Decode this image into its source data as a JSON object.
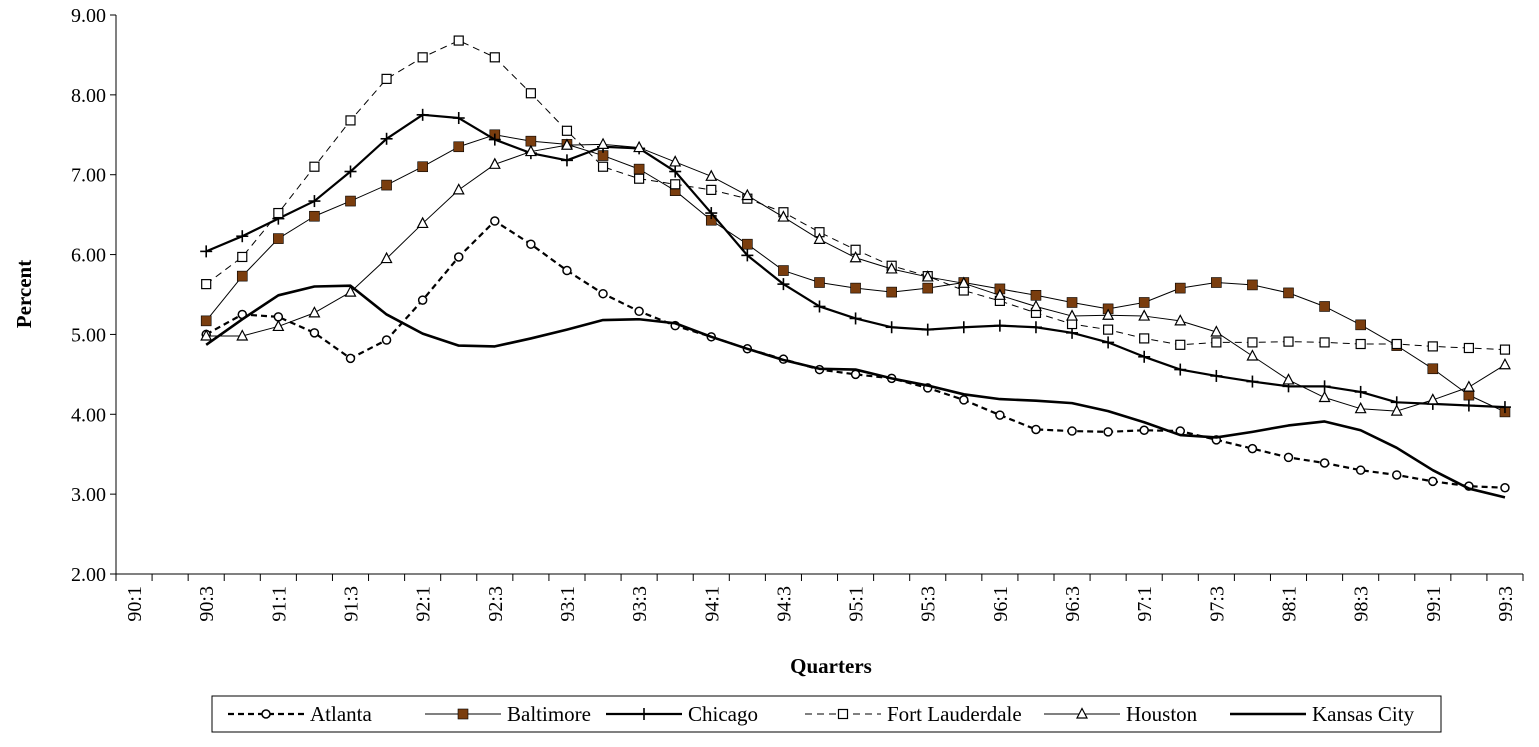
{
  "chart_data": {
    "type": "line",
    "title": "",
    "xlabel": "Quarters",
    "ylabel": "Percent",
    "ylim": [
      2.0,
      9.0
    ],
    "y_ticks": [
      "2.00",
      "3.00",
      "4.00",
      "5.00",
      "6.00",
      "7.00",
      "8.00",
      "9.00"
    ],
    "grid": false,
    "legend_position": "bottom",
    "categories": [
      "90:1",
      "90:2",
      "90:3",
      "90:4",
      "91:1",
      "91:2",
      "91:3",
      "91:4",
      "92:1",
      "92:2",
      "92:3",
      "92:4",
      "93:1",
      "93:2",
      "93:3",
      "93:4",
      "94:1",
      "94:2",
      "94:3",
      "94:4",
      "95:1",
      "95:2",
      "95:3",
      "95:4",
      "96:1",
      "96:2",
      "96:3",
      "96:4",
      "97:1",
      "97:2",
      "97:3",
      "97:4",
      "98:1",
      "98:2",
      "98:3",
      "98:4",
      "99:1",
      "99:2",
      "99:3"
    ],
    "x_tick_labels": [
      "90:1",
      "90:3",
      "91:1",
      "91:3",
      "92:1",
      "92:3",
      "93:1",
      "93:3",
      "94:1",
      "94:3",
      "95:1",
      "95:3",
      "96:1",
      "96:3",
      "97:1",
      "97:3",
      "98:1",
      "98:3",
      "99:1",
      "99:3"
    ],
    "series": [
      {
        "name": "Atlanta",
        "color": "#000000",
        "dash": "6,4",
        "width": 2.2,
        "marker": "circle",
        "values": [
          null,
          null,
          5.0,
          5.25,
          5.22,
          5.02,
          4.7,
          4.93,
          5.43,
          5.97,
          6.42,
          6.13,
          5.8,
          5.51,
          5.29,
          5.11,
          4.97,
          4.82,
          4.69,
          4.56,
          4.5,
          4.45,
          4.33,
          4.18,
          3.99,
          3.81,
          3.79,
          3.78,
          3.8,
          3.79,
          3.68,
          3.57,
          3.46,
          3.39,
          3.3,
          3.24,
          3.16,
          3.1,
          3.08
        ]
      },
      {
        "name": "Baltimore",
        "color": "#000000",
        "dash": "",
        "width": 1,
        "marker": "square-filled",
        "marker_color": "#7a3d0e",
        "values": [
          null,
          null,
          5.17,
          5.73,
          6.2,
          6.48,
          6.67,
          6.87,
          7.1,
          7.35,
          7.5,
          7.42,
          7.38,
          7.24,
          7.07,
          6.8,
          6.43,
          6.13,
          5.8,
          5.65,
          5.58,
          5.53,
          5.58,
          5.65,
          5.57,
          5.49,
          5.4,
          5.32,
          5.4,
          5.58,
          5.65,
          5.62,
          5.52,
          5.35,
          5.12,
          4.86,
          4.57,
          4.24,
          4.03
        ]
      },
      {
        "name": "Chicago",
        "color": "#000000",
        "dash": "",
        "width": 2.2,
        "marker": "plus",
        "values": [
          null,
          null,
          6.04,
          6.23,
          6.45,
          6.67,
          7.04,
          7.45,
          7.75,
          7.71,
          7.44,
          7.27,
          7.18,
          7.35,
          7.33,
          7.04,
          6.52,
          5.99,
          5.63,
          5.35,
          5.2,
          5.09,
          5.06,
          5.09,
          5.11,
          5.09,
          5.02,
          4.9,
          4.72,
          4.56,
          4.48,
          4.41,
          4.35,
          4.35,
          4.28,
          4.15,
          4.13,
          4.11,
          4.09
        ]
      },
      {
        "name": "Fort Lauderdale",
        "color": "#000000",
        "dash": "7,5",
        "width": 1,
        "marker": "square-open",
        "values": [
          null,
          null,
          5.63,
          5.97,
          6.52,
          7.1,
          7.68,
          8.2,
          8.47,
          8.68,
          8.47,
          8.02,
          7.55,
          7.1,
          6.95,
          6.88,
          6.81,
          6.7,
          6.53,
          6.28,
          6.06,
          5.86,
          5.73,
          5.55,
          5.42,
          5.27,
          5.13,
          5.06,
          4.95,
          4.87,
          4.9,
          4.9,
          4.91,
          4.9,
          4.88,
          4.88,
          4.85,
          4.83,
          4.81
        ]
      },
      {
        "name": "Houston",
        "color": "#000000",
        "dash": "",
        "width": 1,
        "marker": "triangle",
        "values": [
          null,
          null,
          4.98,
          4.98,
          5.1,
          5.27,
          5.53,
          5.95,
          6.39,
          6.81,
          7.13,
          7.29,
          7.37,
          7.38,
          7.34,
          7.16,
          6.98,
          6.74,
          6.47,
          6.19,
          5.96,
          5.82,
          5.72,
          5.64,
          5.49,
          5.35,
          5.23,
          5.24,
          5.23,
          5.17,
          5.03,
          4.73,
          4.43,
          4.21,
          4.07,
          4.04,
          4.18,
          4.34,
          4.62
        ]
      },
      {
        "name": "Kansas City",
        "color": "#000000",
        "dash": "",
        "width": 2.6,
        "marker": "none",
        "values": [
          null,
          null,
          4.87,
          5.19,
          5.49,
          5.6,
          5.61,
          5.25,
          5.01,
          4.86,
          4.85,
          4.95,
          5.06,
          5.18,
          5.19,
          5.14,
          4.97,
          4.82,
          4.68,
          4.57,
          4.56,
          4.45,
          4.36,
          4.25,
          4.19,
          4.17,
          4.14,
          4.04,
          3.9,
          3.74,
          3.71,
          3.78,
          3.86,
          3.91,
          3.8,
          3.58,
          3.3,
          3.07,
          2.96
        ]
      }
    ]
  }
}
